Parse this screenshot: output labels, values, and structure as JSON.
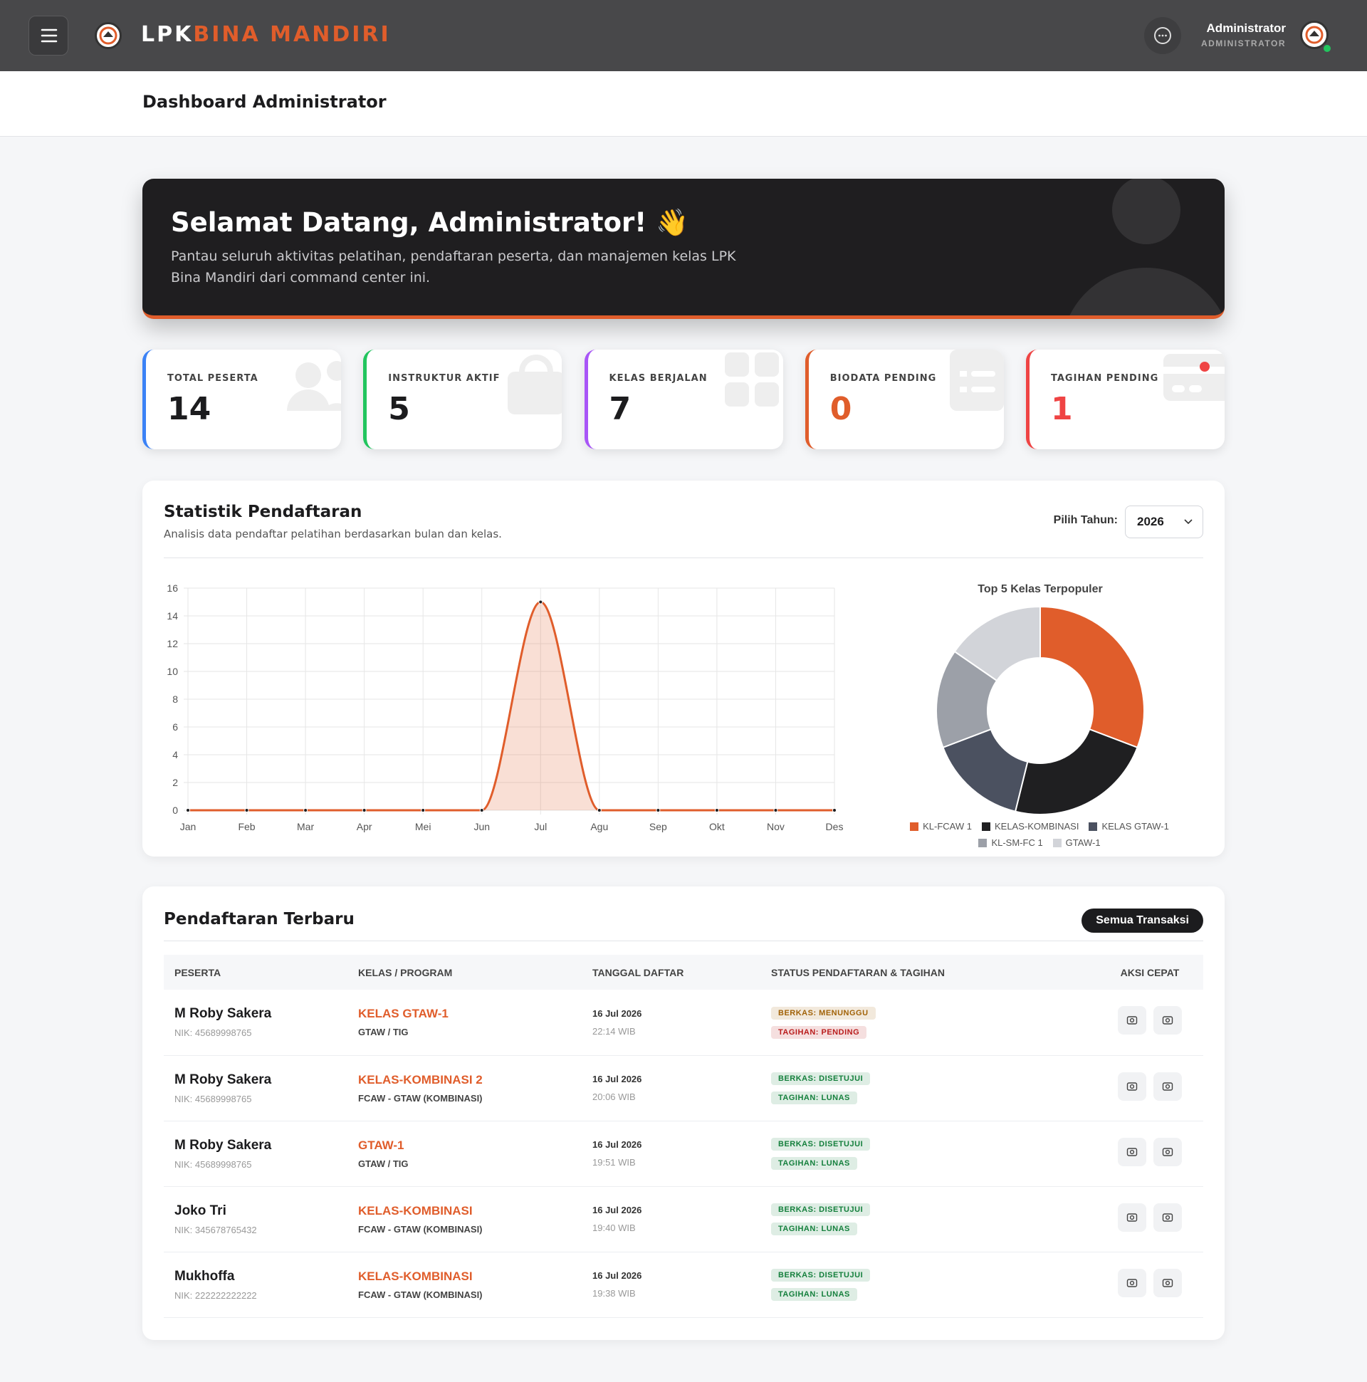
{
  "navbar": {
    "brand_prefix": "LPK",
    "brand_name": "BINA MANDIRI",
    "user_name": "Administrator",
    "user_role": "ADMINISTRATOR"
  },
  "page_title": "Dashboard Administrator",
  "banner": {
    "title": "Selamat Datang, Administrator! 👋",
    "text": "Pantau seluruh aktivitas pelatihan, pendaftaran peserta, dan manajemen kelas LPK Bina Mandiri dari command center ini."
  },
  "stats": [
    {
      "label": "TOTAL PESERTA",
      "value": 14,
      "accent": "#3b82f6",
      "value_color": "#1c1c1e"
    },
    {
      "label": "INSTRUKTUR AKTIF",
      "value": 5,
      "accent": "#22c55e",
      "value_color": "#1c1c1e"
    },
    {
      "label": "KELAS BERJALAN",
      "value": 7,
      "accent": "#a855f7",
      "value_color": "#1c1c1e"
    },
    {
      "label": "BIODATA PENDING",
      "value": 0,
      "accent": "#e05d2b",
      "value_color": "#e05d2b"
    },
    {
      "label": "TAGIHAN PENDING",
      "value": 1,
      "accent": "#ef4444",
      "value_color": "#ef4444"
    }
  ],
  "statistics": {
    "title": "Statistik Pendaftaran",
    "subtitle": "Analisis data pendaftar pelatihan berdasarkan bulan dan kelas.",
    "year_label": "Pilih Tahun:",
    "year": "2026"
  },
  "chart_data": [
    {
      "type": "line",
      "categories": [
        "Jan",
        "Feb",
        "Mar",
        "Apr",
        "Mei",
        "Jun",
        "Jul",
        "Agu",
        "Sep",
        "Okt",
        "Nov",
        "Des"
      ],
      "values": [
        0,
        0,
        0,
        0,
        0,
        0,
        15,
        0,
        0,
        0,
        0,
        0
      ],
      "color": "#e05d2b",
      "ylim": [
        0,
        16
      ],
      "yticks": [
        0,
        2,
        4,
        6,
        8,
        10,
        12,
        14,
        16
      ],
      "grid": true
    },
    {
      "type": "doughnut",
      "title": "Top 5 Kelas Terpopuler",
      "categories": [
        "KL-FCAW 1",
        "KELAS-KOMBINASI",
        "KELAS GTAW-1",
        "KL-SM-FC 1",
        "GTAW-1"
      ],
      "values": [
        4,
        3,
        2,
        2,
        2
      ],
      "colors": [
        "#e05d2b",
        "#1f1f21",
        "#4b5160",
        "#9ca0a8",
        "#d2d4d9"
      ]
    }
  ],
  "registrations": {
    "title": "Pendaftaran Terbaru",
    "button": "Semua Transaksi",
    "columns": [
      "PESERTA",
      "KELAS / PROGRAM",
      "TANGGAL DAFTAR",
      "STATUS PENDAFTARAN & TAGIHAN",
      "AKSI CEPAT"
    ],
    "rows": [
      {
        "name": "M Roby Sakera",
        "nik": "NIK: 45689998765",
        "class": "KELAS GTAW-1",
        "program": "GTAW / TIG",
        "date": "16 Jul 2026",
        "time": "22:14 WIB",
        "berkas": "BERKAS: MENUNGGU",
        "berkas_color": "#a16207",
        "tagihan": "TAGIHAN: PENDING",
        "tagihan_color": "#b91c1c"
      },
      {
        "name": "M Roby Sakera",
        "nik": "NIK: 45689998765",
        "class": "KELAS-KOMBINASI 2",
        "program": "FCAW - GTAW (KOMBINASI)",
        "date": "16 Jul 2026",
        "time": "20:06 WIB",
        "berkas": "BERKAS: DISETUJUI",
        "berkas_color": "#15803d",
        "tagihan": "TAGIHAN: LUNAS",
        "tagihan_color": "#15803d"
      },
      {
        "name": "M Roby Sakera",
        "nik": "NIK: 45689998765",
        "class": "GTAW-1",
        "program": "GTAW / TIG",
        "date": "16 Jul 2026",
        "time": "19:51 WIB",
        "berkas": "BERKAS: DISETUJUI",
        "berkas_color": "#15803d",
        "tagihan": "TAGIHAN: LUNAS",
        "tagihan_color": "#15803d"
      },
      {
        "name": "Joko Tri",
        "nik": "NIK: 345678765432",
        "class": "KELAS-KOMBINASI",
        "program": "FCAW - GTAW (KOMBINASI)",
        "date": "16 Jul 2026",
        "time": "19:40 WIB",
        "berkas": "BERKAS: DISETUJUI",
        "berkas_color": "#15803d",
        "tagihan": "TAGIHAN: LUNAS",
        "tagihan_color": "#15803d"
      },
      {
        "name": "Mukhoffa",
        "nik": "NIK: 222222222222",
        "class": "KELAS-KOMBINASI",
        "program": "FCAW - GTAW (KOMBINASI)",
        "date": "16 Jul 2026",
        "time": "19:38 WIB",
        "berkas": "BERKAS: DISETUJUI",
        "berkas_color": "#15803d",
        "tagihan": "TAGIHAN: LUNAS",
        "tagihan_color": "#15803d"
      }
    ]
  }
}
